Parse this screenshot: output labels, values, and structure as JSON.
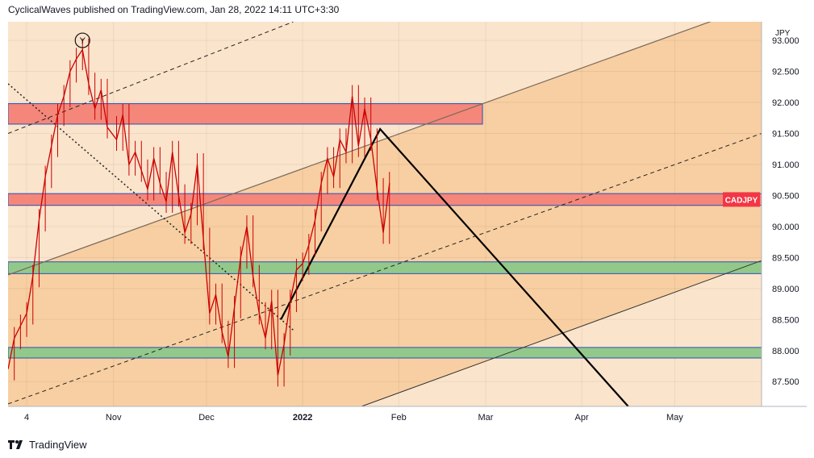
{
  "header": {
    "publisher": "CyclicalWaves",
    "text": "CyclicalWaves published on TradingView.com, Jan 28, 2022 14:11 UTC+3:30"
  },
  "footer": {
    "brand": "TradingView",
    "logo_icon": "tradingview-logo-icon"
  },
  "colors": {
    "band_dark": "#f8cfa2",
    "band_light": "#fbe4cc",
    "resistance_zone": "#f4877a",
    "support_zone": "#92c98a",
    "candle": "#cc0000",
    "badge": "#f23645"
  },
  "chart_data": {
    "type": "line",
    "symbol_badge": "CADJPY",
    "currency_label": "JPY",
    "ylim": [
      87.1,
      93.3
    ],
    "y_ticks": [
      "87.500",
      "88.000",
      "88.500",
      "89.000",
      "89.500",
      "90.000",
      "90.500",
      "91.000",
      "91.500",
      "92.000",
      "92.500",
      "93.000"
    ],
    "x_start": "2021-09-28",
    "x_end": "2022-05-29",
    "x_ticks": [
      {
        "label": "4",
        "date": "2021-10-04"
      },
      {
        "label": "Nov",
        "date": "2021-11-01"
      },
      {
        "label": "Dec",
        "date": "2021-12-01"
      },
      {
        "label": "2022",
        "date": "2022-01-01"
      },
      {
        "label": "Feb",
        "date": "2022-02-01"
      },
      {
        "label": "Mar",
        "date": "2022-03-01"
      },
      {
        "label": "Apr",
        "date": "2022-04-01"
      },
      {
        "label": "May",
        "date": "2022-05-01"
      }
    ],
    "price": [
      [
        "2021-09-28",
        87.7
      ],
      [
        "2021-09-30",
        88.2
      ],
      [
        "2021-10-02",
        88.4
      ],
      [
        "2021-10-04",
        88.6
      ],
      [
        "2021-10-06",
        89.2
      ],
      [
        "2021-10-08",
        90.1
      ],
      [
        "2021-10-10",
        90.8
      ],
      [
        "2021-10-12",
        91.3
      ],
      [
        "2021-10-14",
        91.8
      ],
      [
        "2021-10-16",
        92.1
      ],
      [
        "2021-10-18",
        92.5
      ],
      [
        "2021-10-20",
        92.7
      ],
      [
        "2021-10-22",
        92.85
      ],
      [
        "2021-10-24",
        92.3
      ],
      [
        "2021-10-26",
        91.9
      ],
      [
        "2021-10-28",
        92.2
      ],
      [
        "2021-10-30",
        91.6
      ],
      [
        "2021-11-02",
        91.4
      ],
      [
        "2021-11-04",
        91.8
      ],
      [
        "2021-11-06",
        91.0
      ],
      [
        "2021-11-08",
        91.2
      ],
      [
        "2021-11-10",
        90.9
      ],
      [
        "2021-11-12",
        90.6
      ],
      [
        "2021-11-14",
        91.1
      ],
      [
        "2021-11-16",
        90.7
      ],
      [
        "2021-11-18",
        90.4
      ],
      [
        "2021-11-20",
        91.2
      ],
      [
        "2021-11-22",
        90.5
      ],
      [
        "2021-11-24",
        89.9
      ],
      [
        "2021-11-26",
        90.2
      ],
      [
        "2021-11-28",
        91.0
      ],
      [
        "2021-11-30",
        89.8
      ],
      [
        "2021-12-02",
        88.6
      ],
      [
        "2021-12-04",
        88.9
      ],
      [
        "2021-12-06",
        88.3
      ],
      [
        "2021-12-08",
        87.9
      ],
      [
        "2021-12-10",
        88.7
      ],
      [
        "2021-12-12",
        89.5
      ],
      [
        "2021-12-14",
        90.0
      ],
      [
        "2021-12-16",
        89.2
      ],
      [
        "2021-12-18",
        88.6
      ],
      [
        "2021-12-20",
        88.2
      ],
      [
        "2021-12-22",
        88.8
      ],
      [
        "2021-12-24",
        87.6
      ],
      [
        "2021-12-26",
        88.1
      ],
      [
        "2021-12-28",
        88.8
      ],
      [
        "2021-12-30",
        89.3
      ],
      [
        "2022-01-01",
        89.4
      ],
      [
        "2022-01-03",
        89.7
      ],
      [
        "2022-01-05",
        90.1
      ],
      [
        "2022-01-07",
        90.7
      ],
      [
        "2022-01-09",
        91.1
      ],
      [
        "2022-01-11",
        90.8
      ],
      [
        "2022-01-13",
        91.4
      ],
      [
        "2022-01-15",
        91.2
      ],
      [
        "2022-01-17",
        92.1
      ],
      [
        "2022-01-19",
        91.3
      ],
      [
        "2022-01-21",
        91.9
      ],
      [
        "2022-01-23",
        91.4
      ],
      [
        "2022-01-25",
        90.6
      ],
      [
        "2022-01-27",
        89.9
      ],
      [
        "2022-01-29",
        90.7
      ]
    ],
    "drawings": {
      "resistance_zone": {
        "from": "2021-09-28",
        "to": "2022-02-28",
        "low": 91.65,
        "high": 91.98
      },
      "upper_support_zone": {
        "from": "2021-09-28",
        "to": "2022-05-29",
        "low": 90.34,
        "high": 90.53
      },
      "mid_support_zone": {
        "from": "2021-09-28",
        "to": "2022-05-29",
        "low": 89.24,
        "high": 89.43
      },
      "low_support_zone": {
        "from": "2021-09-28",
        "to": "2022-05-29",
        "low": 87.88,
        "high": 88.05
      },
      "channel_upper_solid": [
        [
          "2021-09-28",
          89.22
        ],
        [
          "2022-05-29",
          93.6
        ]
      ],
      "channel_lower_solid": [
        [
          "2022-01-20",
          87.1
        ],
        [
          "2022-05-29",
          89.45
        ]
      ],
      "channel_upper_dashed": [
        [
          "2021-09-28",
          91.5
        ],
        [
          "2021-12-29",
          93.3
        ]
      ],
      "channel_mid_dashed": [
        [
          "2021-09-28",
          87.14
        ],
        [
          "2022-05-29",
          91.5
        ]
      ],
      "dotted_trend": [
        [
          "2021-09-28",
          92.3
        ],
        [
          "2021-12-29",
          88.33
        ]
      ],
      "black_zigzag": [
        [
          "2021-12-25",
          88.5
        ],
        [
          "2022-01-26",
          91.57
        ],
        [
          "2022-04-16",
          87.1
        ]
      ],
      "wave_label": {
        "date": "2021-10-22",
        "price": 93.0,
        "text": "Y"
      }
    }
  }
}
